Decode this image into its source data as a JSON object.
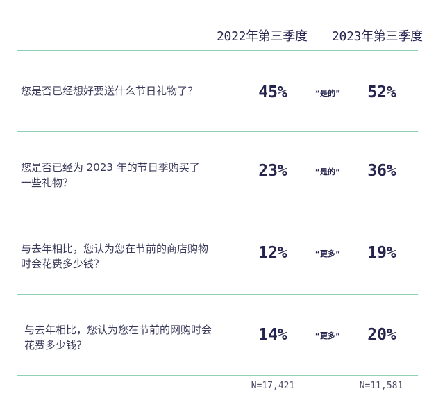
{
  "chart_data": {
    "type": "table",
    "columns": [
      "2022年第三季度",
      "2023年第三季度"
    ],
    "rows": [
      {
        "question": "您是否已经想好要送什么节日礼物了？",
        "tag": "“是的”",
        "q3_2022": "45%",
        "q3_2023": "52%"
      },
      {
        "question": "您是否已经为 2023 年的节日季购买了一些礼物？",
        "tag": "“是的”",
        "q3_2022": "23%",
        "q3_2023": "36%"
      },
      {
        "question": "与去年相比，您认为您在节前的商店购物时会花费多少钱？",
        "tag": "“更多”",
        "q3_2022": "12%",
        "q3_2023": "19%"
      },
      {
        "question": "与去年相比，您认为您在节前的网购时会花费多少钱？",
        "tag": "“更多”",
        "q3_2022": "14%",
        "q3_2023": "20%"
      }
    ],
    "sample_sizes": [
      "N=17,421",
      "N=11,581"
    ]
  }
}
